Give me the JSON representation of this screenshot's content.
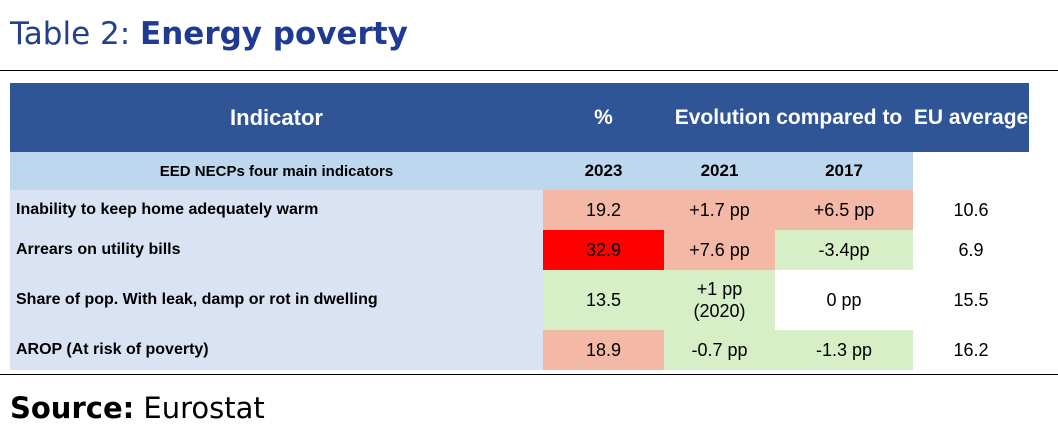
{
  "title": {
    "prefix": "Table 2: ",
    "emphasis": "Energy poverty"
  },
  "table": {
    "header": {
      "indicator": "Indicator",
      "percent": "%",
      "evolution": "Evolution compared to",
      "eu_average": "EU average"
    },
    "subheader": {
      "label": "EED NECPs four main indicators",
      "year_percent": "2023",
      "year_1": "2021",
      "year_2": "2017"
    },
    "rows": [
      {
        "indicator": "Inability to keep home adequately warm",
        "percent": "19.2",
        "evo_1": "+1.7 pp",
        "evo_2": "+6.5 pp",
        "eu_average": "10.6"
      },
      {
        "indicator": "Arrears on utility bills",
        "percent": "32.9",
        "evo_1": "+7.6 pp",
        "evo_2": "-3.4pp",
        "eu_average": "6.9"
      },
      {
        "indicator": "Share of pop. With leak, damp or rot in dwelling",
        "percent": "13.5",
        "evo_1": "+1 pp (2020)",
        "evo_2": "0 pp",
        "eu_average": "15.5"
      },
      {
        "indicator": "AROP (At risk of poverty)",
        "percent": "18.9",
        "evo_1": "-0.7 pp",
        "evo_2": "-1.3 pp",
        "eu_average": "16.2"
      }
    ],
    "colors": {
      "header_blue": "#2f5597",
      "subheader_light_blue": "#bdd7ee",
      "indicator_cell": "#dae3f3",
      "worse_red": "#f4b8a6",
      "highlight_red": "#ff0000",
      "better_green": "#d7efc7"
    }
  },
  "source": {
    "label": "Source:",
    "value": " Eurostat"
  }
}
